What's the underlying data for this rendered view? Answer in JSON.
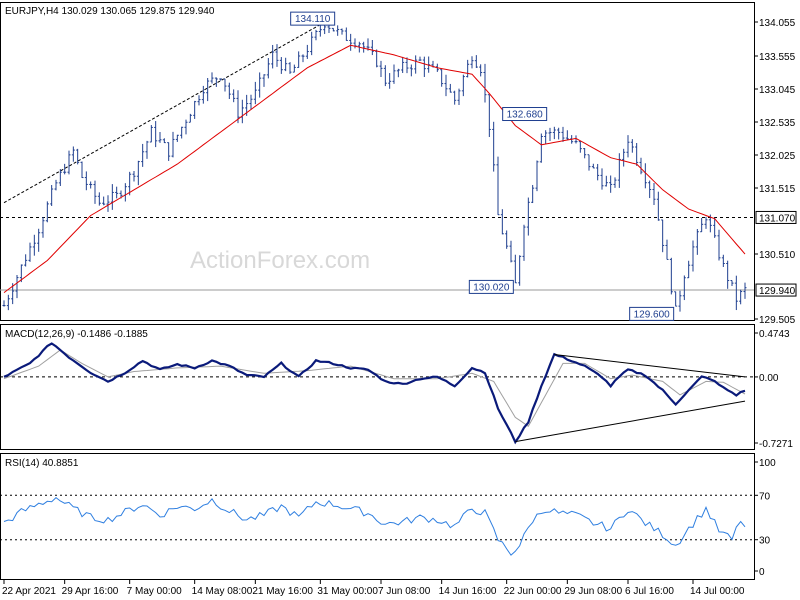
{
  "header": {
    "title": "EURJPY,H4  130.029 130.065 129.875 129.940"
  },
  "watermark": "ActionForex.com",
  "colors": {
    "price": "#1f3f8f",
    "ma": "#e00000",
    "macd": "#0a1a7a",
    "signal": "#a0a0a0",
    "rsi": "#2f7fe0",
    "grid": "#000000"
  },
  "chart_data": [
    {
      "type": "line",
      "name": "EURJPY H4 price",
      "ylim": [
        129.505,
        134.33
      ],
      "y_ticks": [
        "134.055",
        "133.555",
        "133.045",
        "132.535",
        "132.025",
        "131.515",
        "131.070",
        "130.510",
        "129.940",
        "129.505"
      ],
      "price_anchors": [
        {
          "t": 0,
          "v": 129.7
        },
        {
          "t": 4,
          "v": 130.3
        },
        {
          "t": 8,
          "v": 130.9
        },
        {
          "t": 12,
          "v": 131.6
        },
        {
          "t": 16,
          "v": 132.1
        },
        {
          "t": 18,
          "v": 131.7
        },
        {
          "t": 22,
          "v": 131.3
        },
        {
          "t": 26,
          "v": 131.4
        },
        {
          "t": 30,
          "v": 131.8
        },
        {
          "t": 34,
          "v": 132.4
        },
        {
          "t": 38,
          "v": 132.1
        },
        {
          "t": 42,
          "v": 132.6
        },
        {
          "t": 46,
          "v": 133.1
        },
        {
          "t": 50,
          "v": 133.3
        },
        {
          "t": 54,
          "v": 132.7
        },
        {
          "t": 58,
          "v": 133.0
        },
        {
          "t": 62,
          "v": 133.6
        },
        {
          "t": 66,
          "v": 133.3
        },
        {
          "t": 70,
          "v": 133.7
        },
        {
          "t": 74,
          "v": 134.11
        },
        {
          "t": 78,
          "v": 133.9
        },
        {
          "t": 82,
          "v": 133.8
        },
        {
          "t": 86,
          "v": 133.5
        },
        {
          "t": 88,
          "v": 133.2
        },
        {
          "t": 92,
          "v": 133.4
        },
        {
          "t": 96,
          "v": 133.5
        },
        {
          "t": 100,
          "v": 133.3
        },
        {
          "t": 104,
          "v": 132.9
        },
        {
          "t": 108,
          "v": 133.6
        },
        {
          "t": 110,
          "v": 133.4
        },
        {
          "t": 112,
          "v": 132.5
        },
        {
          "t": 114,
          "v": 131.1
        },
        {
          "t": 116,
          "v": 130.6
        },
        {
          "t": 118,
          "v": 130.02
        },
        {
          "t": 120,
          "v": 131.0
        },
        {
          "t": 122,
          "v": 131.6
        },
        {
          "t": 124,
          "v": 132.4
        },
        {
          "t": 128,
          "v": 132.4
        },
        {
          "t": 132,
          "v": 132.2
        },
        {
          "t": 136,
          "v": 131.8
        },
        {
          "t": 140,
          "v": 131.5
        },
        {
          "t": 142,
          "v": 131.9
        },
        {
          "t": 144,
          "v": 132.3
        },
        {
          "t": 146,
          "v": 132.0
        },
        {
          "t": 148,
          "v": 131.7
        },
        {
          "t": 150,
          "v": 131.4
        },
        {
          "t": 152,
          "v": 130.7
        },
        {
          "t": 154,
          "v": 130.0
        },
        {
          "t": 155,
          "v": 129.6
        },
        {
          "t": 157,
          "v": 130.2
        },
        {
          "t": 159,
          "v": 130.6
        },
        {
          "t": 162,
          "v": 131.1
        },
        {
          "t": 164,
          "v": 130.7
        },
        {
          "t": 166,
          "v": 130.3
        },
        {
          "t": 169,
          "v": 129.8
        },
        {
          "t": 171,
          "v": 129.94
        }
      ],
      "ma_anchors": [
        {
          "t": 0,
          "v": 129.9
        },
        {
          "t": 10,
          "v": 130.4
        },
        {
          "t": 20,
          "v": 131.1
        },
        {
          "t": 30,
          "v": 131.5
        },
        {
          "t": 40,
          "v": 131.9
        },
        {
          "t": 50,
          "v": 132.4
        },
        {
          "t": 60,
          "v": 132.9
        },
        {
          "t": 70,
          "v": 133.4
        },
        {
          "t": 80,
          "v": 133.75
        },
        {
          "t": 90,
          "v": 133.6
        },
        {
          "t": 100,
          "v": 133.4
        },
        {
          "t": 108,
          "v": 133.3
        },
        {
          "t": 112,
          "v": 133.0
        },
        {
          "t": 118,
          "v": 132.5
        },
        {
          "t": 124,
          "v": 132.2
        },
        {
          "t": 132,
          "v": 132.3
        },
        {
          "t": 140,
          "v": 132.0
        },
        {
          "t": 146,
          "v": 131.9
        },
        {
          "t": 152,
          "v": 131.5
        },
        {
          "t": 158,
          "v": 131.2
        },
        {
          "t": 164,
          "v": 131.05
        },
        {
          "t": 171,
          "v": 130.5
        }
      ],
      "level_lines": [
        131.07,
        129.94
      ],
      "annotations": [
        {
          "label": "134.110",
          "t": 74,
          "v": 134.11
        },
        {
          "label": "132.680",
          "t": 116,
          "v": 132.68
        },
        {
          "label": "130.020",
          "t": 118,
          "v": 130.02
        },
        {
          "label": "129.600",
          "t": 155,
          "v": 129.6
        }
      ],
      "trendline": {
        "from": {
          "t": 0,
          "v": 131.3
        },
        "to": {
          "t": 74,
          "v": 134.11
        }
      },
      "current": "129.940",
      "level_label": "131.070"
    },
    {
      "type": "line",
      "name": "MACD(12,26,9)",
      "title": "MACD(12,26,9) -0.1486 -0.1885",
      "ylim": [
        -0.78,
        0.5
      ],
      "y_ticks": [
        "0.4743",
        "0.00",
        "-0.7271"
      ],
      "macd_anchors": [
        {
          "t": 0,
          "v": 0.0
        },
        {
          "t": 6,
          "v": 0.15
        },
        {
          "t": 11,
          "v": 0.38
        },
        {
          "t": 15,
          "v": 0.22
        },
        {
          "t": 20,
          "v": 0.05
        },
        {
          "t": 24,
          "v": -0.05
        },
        {
          "t": 28,
          "v": 0.05
        },
        {
          "t": 32,
          "v": 0.18
        },
        {
          "t": 36,
          "v": 0.08
        },
        {
          "t": 40,
          "v": 0.14
        },
        {
          "t": 44,
          "v": 0.1
        },
        {
          "t": 48,
          "v": 0.18
        },
        {
          "t": 52,
          "v": 0.12
        },
        {
          "t": 56,
          "v": 0.02
        },
        {
          "t": 60,
          "v": 0.0
        },
        {
          "t": 64,
          "v": 0.15
        },
        {
          "t": 68,
          "v": 0.0
        },
        {
          "t": 72,
          "v": 0.18
        },
        {
          "t": 76,
          "v": 0.15
        },
        {
          "t": 80,
          "v": 0.1
        },
        {
          "t": 84,
          "v": 0.08
        },
        {
          "t": 88,
          "v": -0.05
        },
        {
          "t": 92,
          "v": -0.08
        },
        {
          "t": 96,
          "v": -0.02
        },
        {
          "t": 100,
          "v": 0.0
        },
        {
          "t": 104,
          "v": -0.1
        },
        {
          "t": 108,
          "v": 0.1
        },
        {
          "t": 111,
          "v": 0.05
        },
        {
          "t": 114,
          "v": -0.35
        },
        {
          "t": 118,
          "v": -0.72
        },
        {
          "t": 121,
          "v": -0.5
        },
        {
          "t": 124,
          "v": -0.1
        },
        {
          "t": 127,
          "v": 0.25
        },
        {
          "t": 130,
          "v": 0.2
        },
        {
          "t": 134,
          "v": 0.12
        },
        {
          "t": 138,
          "v": 0.0
        },
        {
          "t": 140,
          "v": -0.1
        },
        {
          "t": 142,
          "v": 0.0
        },
        {
          "t": 144,
          "v": 0.08
        },
        {
          "t": 148,
          "v": 0.02
        },
        {
          "t": 152,
          "v": -0.15
        },
        {
          "t": 155,
          "v": -0.3
        },
        {
          "t": 158,
          "v": -0.15
        },
        {
          "t": 161,
          "v": 0.0
        },
        {
          "t": 163,
          "v": -0.02
        },
        {
          "t": 166,
          "v": -0.12
        },
        {
          "t": 169,
          "v": -0.2
        },
        {
          "t": 171,
          "v": -0.15
        }
      ],
      "signal_anchors": [
        {
          "t": 0,
          "v": -0.02
        },
        {
          "t": 8,
          "v": 0.12
        },
        {
          "t": 13,
          "v": 0.3
        },
        {
          "t": 18,
          "v": 0.15
        },
        {
          "t": 24,
          "v": 0.0
        },
        {
          "t": 30,
          "v": 0.06
        },
        {
          "t": 40,
          "v": 0.1
        },
        {
          "t": 50,
          "v": 0.12
        },
        {
          "t": 60,
          "v": 0.04
        },
        {
          "t": 70,
          "v": 0.07
        },
        {
          "t": 80,
          "v": 0.12
        },
        {
          "t": 90,
          "v": -0.02
        },
        {
          "t": 100,
          "v": -0.02
        },
        {
          "t": 108,
          "v": 0.04
        },
        {
          "t": 113,
          "v": -0.05
        },
        {
          "t": 118,
          "v": -0.45
        },
        {
          "t": 121,
          "v": -0.55
        },
        {
          "t": 125,
          "v": -0.2
        },
        {
          "t": 129,
          "v": 0.15
        },
        {
          "t": 134,
          "v": 0.15
        },
        {
          "t": 140,
          "v": -0.02
        },
        {
          "t": 145,
          "v": 0.02
        },
        {
          "t": 152,
          "v": -0.05
        },
        {
          "t": 156,
          "v": -0.2
        },
        {
          "t": 162,
          "v": -0.05
        },
        {
          "t": 166,
          "v": -0.06
        },
        {
          "t": 171,
          "v": -0.19
        }
      ],
      "trendlines": [
        {
          "from": {
            "t": 127,
            "v": 0.25
          },
          "to": {
            "t": 171,
            "v": 0.0
          }
        },
        {
          "from": {
            "t": 118,
            "v": -0.72
          },
          "to": {
            "t": 171,
            "v": -0.27
          }
        }
      ]
    },
    {
      "type": "line",
      "name": "RSI(14)",
      "title": "RSI(14) 40.8851",
      "ylim": [
        0,
        100
      ],
      "y_ticks": [
        "100",
        "70",
        "30",
        "0"
      ],
      "levels": [
        70,
        30
      ],
      "rsi_anchors": [
        {
          "t": 0,
          "v": 45
        },
        {
          "t": 4,
          "v": 55
        },
        {
          "t": 8,
          "v": 62
        },
        {
          "t": 12,
          "v": 68
        },
        {
          "t": 16,
          "v": 58
        },
        {
          "t": 20,
          "v": 50
        },
        {
          "t": 24,
          "v": 48
        },
        {
          "t": 28,
          "v": 55
        },
        {
          "t": 32,
          "v": 62
        },
        {
          "t": 36,
          "v": 52
        },
        {
          "t": 40,
          "v": 60
        },
        {
          "t": 44,
          "v": 58
        },
        {
          "t": 48,
          "v": 66
        },
        {
          "t": 52,
          "v": 56
        },
        {
          "t": 56,
          "v": 48
        },
        {
          "t": 60,
          "v": 52
        },
        {
          "t": 64,
          "v": 60
        },
        {
          "t": 68,
          "v": 50
        },
        {
          "t": 72,
          "v": 64
        },
        {
          "t": 76,
          "v": 62
        },
        {
          "t": 80,
          "v": 58
        },
        {
          "t": 84,
          "v": 54
        },
        {
          "t": 88,
          "v": 44
        },
        {
          "t": 92,
          "v": 46
        },
        {
          "t": 96,
          "v": 50
        },
        {
          "t": 100,
          "v": 48
        },
        {
          "t": 104,
          "v": 42
        },
        {
          "t": 108,
          "v": 58
        },
        {
          "t": 111,
          "v": 54
        },
        {
          "t": 114,
          "v": 30
        },
        {
          "t": 117,
          "v": 18
        },
        {
          "t": 119,
          "v": 25
        },
        {
          "t": 122,
          "v": 48
        },
        {
          "t": 125,
          "v": 58
        },
        {
          "t": 128,
          "v": 54
        },
        {
          "t": 132,
          "v": 52
        },
        {
          "t": 136,
          "v": 45
        },
        {
          "t": 140,
          "v": 40
        },
        {
          "t": 144,
          "v": 58
        },
        {
          "t": 148,
          "v": 45
        },
        {
          "t": 152,
          "v": 35
        },
        {
          "t": 155,
          "v": 25
        },
        {
          "t": 158,
          "v": 40
        },
        {
          "t": 162,
          "v": 58
        },
        {
          "t": 165,
          "v": 38
        },
        {
          "t": 168,
          "v": 30
        },
        {
          "t": 170,
          "v": 48
        },
        {
          "t": 171,
          "v": 41
        }
      ]
    }
  ],
  "x_axis": {
    "count": 172,
    "labels": [
      {
        "t": 0,
        "label": "22 Apr 2021"
      },
      {
        "t": 14,
        "label": "29 Apr 16:00"
      },
      {
        "t": 29,
        "label": "7 May 00:00"
      },
      {
        "t": 44,
        "label": "14 May 08:00"
      },
      {
        "t": 58,
        "label": "21 May 16:00"
      },
      {
        "t": 73,
        "label": "31 May 00:00"
      },
      {
        "t": 87,
        "label": "7 Jun 08:00"
      },
      {
        "t": 101,
        "label": "14 Jun 16:00"
      },
      {
        "t": 116,
        "label": "22 Jun 00:00"
      },
      {
        "t": 130,
        "label": "29 Jun 08:00"
      },
      {
        "t": 144,
        "label": "6 Jul 16:00"
      },
      {
        "t": 159,
        "label": "14 Jul 00:00"
      }
    ]
  }
}
